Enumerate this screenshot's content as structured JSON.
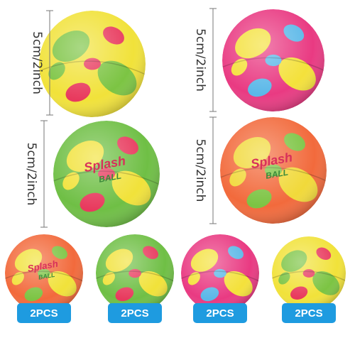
{
  "size_labels": [
    "5cm/2inch",
    "5cm/2inch",
    "5cm/2inch",
    "5cm/2inch"
  ],
  "quantity_labels": [
    "2PCS",
    "2PCS",
    "2PCS",
    "2PCS"
  ],
  "ball_prints": [
    {
      "word": "Splash",
      "sub": "BALL"
    },
    {
      "word": "Splash",
      "sub": "BALL"
    },
    {
      "word": "Splash",
      "sub": "BALL"
    }
  ]
}
